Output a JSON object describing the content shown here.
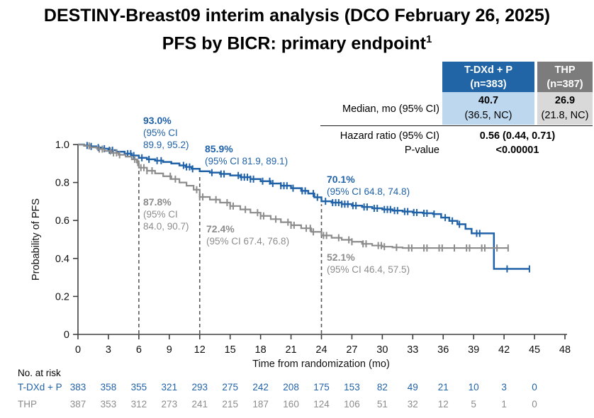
{
  "title": {
    "line1": "DESTINY-Breast09 interim analysis (DCO February 26, 2025)",
    "line2": "PFS by BICR: primary endpoint",
    "line2_superscript": "1"
  },
  "colors": {
    "tdxd_blue": "#2062A8",
    "thp_gray": "#8C8C8C",
    "header_blue_bg": "#2265A7",
    "header_gray_bg": "#7C7C7C",
    "cell_light_blue_bg": "#BDD7EE",
    "cell_light_gray_bg": "#D9D9D9",
    "dashed_line": "#595959",
    "axis": "#404040"
  },
  "summary_table": {
    "columns": [
      {
        "name_line1": "T-DXd + P",
        "name_line2": "(n=383)"
      },
      {
        "name_line1": "THP",
        "name_line2": "(n=387)"
      }
    ],
    "median_label": "Median, mo (95% CI)",
    "median_values": [
      {
        "value": "40.7",
        "ci": "(36.5, NC)"
      },
      {
        "value": "26.9",
        "ci": "(21.8, NC)"
      }
    ],
    "hazard_label": "Hazard ratio (95% CI)",
    "hazard_value": "0.56 (0.44, 0.71)",
    "pvalue_label": "P-value",
    "pvalue_value": "<0.00001"
  },
  "chart_data": {
    "type": "line",
    "subtype": "kaplan-meier-step",
    "xlabel": "Time from randomization (mo)",
    "ylabel": "Probability of PFS",
    "xlim": [
      0,
      48
    ],
    "ylim": [
      0,
      1.0
    ],
    "x_ticks": [
      0,
      3,
      6,
      9,
      12,
      15,
      18,
      21,
      24,
      27,
      30,
      33,
      36,
      39,
      42,
      45,
      48
    ],
    "y_ticks": [
      [
        1.0,
        "1.0"
      ],
      [
        0.8,
        "0.8"
      ],
      [
        0.6,
        "0.6"
      ],
      [
        0.4,
        "0.4"
      ],
      [
        0.2,
        "0.2"
      ],
      [
        0,
        "0"
      ]
    ],
    "grid": false,
    "dashed_reference_months": [
      6,
      12,
      24
    ],
    "series": [
      {
        "name": "T-DXd + P",
        "color": "#2062A8",
        "steps": [
          [
            0,
            1.0
          ],
          [
            0.6,
            0.995
          ],
          [
            1.2,
            0.99
          ],
          [
            1.8,
            0.984
          ],
          [
            2.4,
            0.978
          ],
          [
            3.0,
            0.97
          ],
          [
            3.8,
            0.962
          ],
          [
            4.6,
            0.952
          ],
          [
            5.3,
            0.942
          ],
          [
            6.0,
            0.93
          ],
          [
            6.8,
            0.922
          ],
          [
            7.6,
            0.915
          ],
          [
            8.4,
            0.908
          ],
          [
            9.2,
            0.9
          ],
          [
            10.0,
            0.89
          ],
          [
            10.6,
            0.882
          ],
          [
            11.2,
            0.872
          ],
          [
            12.0,
            0.859
          ],
          [
            13.0,
            0.852
          ],
          [
            14.0,
            0.845
          ],
          [
            15.0,
            0.837
          ],
          [
            16.0,
            0.828
          ],
          [
            17.0,
            0.818
          ],
          [
            18.0,
            0.807
          ],
          [
            19.0,
            0.795
          ],
          [
            20.0,
            0.783
          ],
          [
            21.0,
            0.77
          ],
          [
            22.0,
            0.756
          ],
          [
            22.7,
            0.742
          ],
          [
            23.3,
            0.722
          ],
          [
            24.0,
            0.701
          ],
          [
            25.0,
            0.694
          ],
          [
            26.0,
            0.686
          ],
          [
            27.0,
            0.678
          ],
          [
            28.0,
            0.671
          ],
          [
            29.0,
            0.664
          ],
          [
            30.0,
            0.658
          ],
          [
            31.0,
            0.652
          ],
          [
            32.0,
            0.647
          ],
          [
            33.0,
            0.642
          ],
          [
            34.0,
            0.638
          ],
          [
            35.0,
            0.634
          ],
          [
            35.8,
            0.615
          ],
          [
            36.6,
            0.598
          ],
          [
            37.4,
            0.58
          ],
          [
            38.2,
            0.556
          ],
          [
            38.8,
            0.532
          ],
          [
            41.0,
            0.345
          ],
          [
            44.5,
            0.345
          ]
        ],
        "censor_months": [
          0.9,
          1.3,
          2.0,
          2.6,
          3.1,
          3.4,
          4.9,
          5.2,
          5.5,
          6.3,
          7.0,
          7.8,
          8.2,
          10.4,
          10.7,
          11.0,
          11.3,
          13.2,
          14.1,
          14.4,
          15.8,
          16.1,
          16.4,
          16.7,
          17.0,
          17.3,
          18.2,
          18.9,
          19.2,
          20.0,
          20.3,
          20.6,
          21.2,
          22.1,
          22.4,
          23.2,
          23.6,
          24.4,
          25.1,
          25.4,
          25.7,
          26.0,
          26.3,
          26.6,
          27.1,
          27.4,
          28.2,
          28.5,
          29.2,
          29.5,
          30.2,
          30.5,
          30.8,
          31.2,
          31.5,
          32.2,
          32.5,
          33.1,
          33.4,
          34.1,
          34.4,
          35.1,
          36.2,
          36.9,
          37.6,
          39.3,
          39.6,
          42.3,
          44.5
        ]
      },
      {
        "name": "THP",
        "color": "#8C8C8C",
        "steps": [
          [
            0,
            1.0
          ],
          [
            0.6,
            0.993
          ],
          [
            1.2,
            0.985
          ],
          [
            1.9,
            0.976
          ],
          [
            2.6,
            0.966
          ],
          [
            3.3,
            0.956
          ],
          [
            4.0,
            0.946
          ],
          [
            4.7,
            0.936
          ],
          [
            5.3,
            0.922
          ],
          [
            5.8,
            0.905
          ],
          [
            6.0,
            0.878
          ],
          [
            6.8,
            0.862
          ],
          [
            7.6,
            0.848
          ],
          [
            8.4,
            0.833
          ],
          [
            9.2,
            0.818
          ],
          [
            10.0,
            0.8
          ],
          [
            10.7,
            0.783
          ],
          [
            11.4,
            0.762
          ],
          [
            12.0,
            0.724
          ],
          [
            13.0,
            0.71
          ],
          [
            14.0,
            0.694
          ],
          [
            15.0,
            0.676
          ],
          [
            16.0,
            0.658
          ],
          [
            17.0,
            0.641
          ],
          [
            18.0,
            0.624
          ],
          [
            19.0,
            0.607
          ],
          [
            20.0,
            0.591
          ],
          [
            21.0,
            0.575
          ],
          [
            22.0,
            0.559
          ],
          [
            23.0,
            0.54
          ],
          [
            24.0,
            0.521
          ],
          [
            25.0,
            0.509
          ],
          [
            26.0,
            0.498
          ],
          [
            27.0,
            0.488
          ],
          [
            28.0,
            0.477
          ],
          [
            29.0,
            0.468
          ],
          [
            30.0,
            0.462
          ],
          [
            31.0,
            0.458
          ],
          [
            32.0,
            0.455
          ],
          [
            42.4,
            0.455
          ]
        ],
        "censor_months": [
          1.1,
          2.1,
          2.4,
          3.2,
          3.5,
          3.8,
          4.1,
          5.6,
          5.9,
          6.2,
          6.5,
          6.8,
          7.3,
          9.1,
          9.6,
          11.7,
          12.0,
          12.3,
          13.6,
          14.7,
          15.0,
          15.3,
          16.5,
          17.7,
          18.0,
          18.3,
          19.5,
          20.7,
          21.0,
          21.3,
          22.5,
          22.9,
          23.2,
          24.2,
          24.5,
          25.7,
          26.7,
          27.0,
          28.1,
          28.4,
          29.6,
          29.9,
          30.2,
          31.4,
          32.6,
          32.9,
          34.1,
          34.4,
          35.6,
          35.9,
          37.1,
          38.3,
          38.6,
          39.8,
          40.1,
          41.3,
          42.4
        ]
      }
    ],
    "annotations": [
      {
        "id": "tdxd-6mo",
        "series": "T-DXd + P",
        "pct": "93.0%",
        "ci_lines": [
          "(95% CI",
          "89.9, 95.2)"
        ]
      },
      {
        "id": "tdxd-12mo",
        "series": "T-DXd + P",
        "pct": "85.9%",
        "ci_lines": [
          "(95% CI 81.9, 89.1)"
        ]
      },
      {
        "id": "tdxd-24mo",
        "series": "T-DXd + P",
        "pct": "70.1%",
        "ci_lines": [
          "(95% CI 64.8, 74.8)"
        ]
      },
      {
        "id": "thp-6mo",
        "series": "THP",
        "pct": "87.8%",
        "ci_lines": [
          "(95% CI",
          "84.0, 90.7)"
        ]
      },
      {
        "id": "thp-12mo",
        "series": "THP",
        "pct": "72.4%",
        "ci_lines": [
          "(95% CI 67.4, 76.8)"
        ]
      },
      {
        "id": "thp-24mo",
        "series": "THP",
        "pct": "52.1%",
        "ci_lines": [
          "(95% CI 46.4, 57.5)"
        ]
      }
    ]
  },
  "risk_table": {
    "heading": "No. at risk",
    "tick_months": [
      0,
      3,
      6,
      9,
      12,
      15,
      18,
      21,
      24,
      27,
      30,
      33,
      36,
      39,
      42,
      45
    ],
    "rows": [
      {
        "label": "T-DXd + P",
        "color": "#2062A8",
        "values": [
          "383",
          "358",
          "355",
          "321",
          "293",
          "275",
          "242",
          "208",
          "175",
          "153",
          "82",
          "49",
          "21",
          "10",
          "3",
          "0"
        ]
      },
      {
        "label": "THP",
        "color": "#8C8C8C",
        "values": [
          "387",
          "353",
          "312",
          "273",
          "241",
          "215",
          "187",
          "160",
          "124",
          "106",
          "51",
          "32",
          "12",
          "5",
          "1",
          "0"
        ]
      }
    ]
  }
}
